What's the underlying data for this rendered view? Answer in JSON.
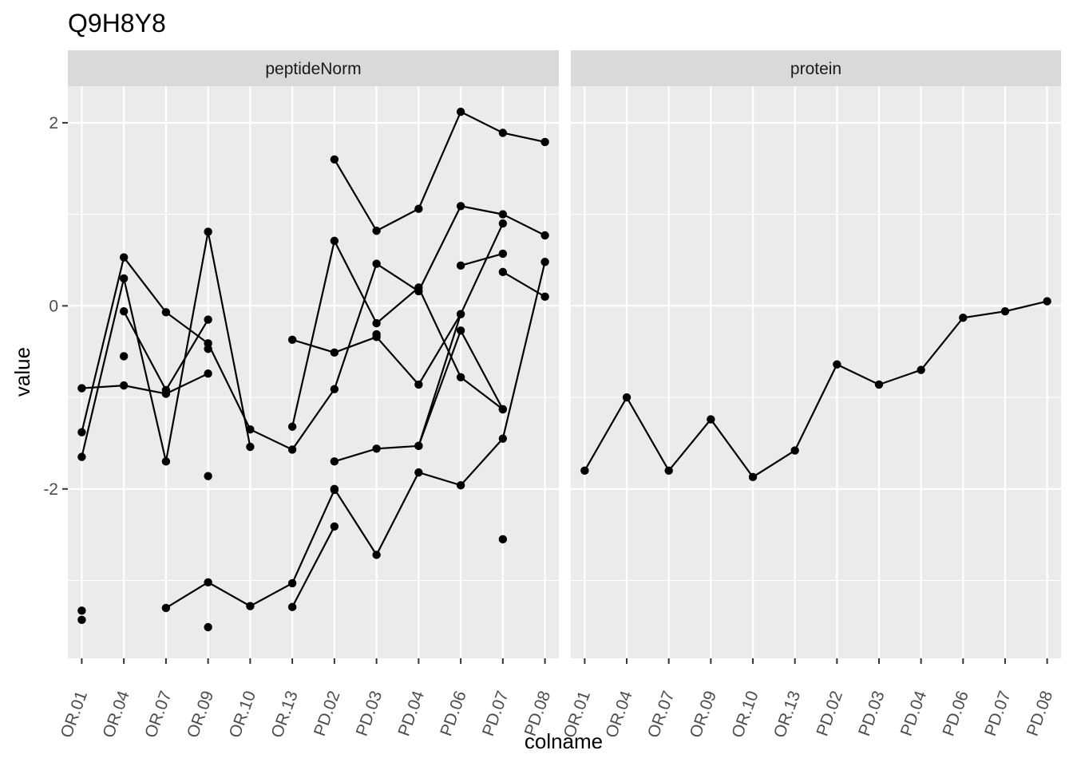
{
  "chart_data": {
    "type": "line",
    "title": "Q9H8Y8",
    "xlabel": "colname",
    "ylabel": "value",
    "ylim": [
      -3.85,
      2.4
    ],
    "y_ticks": [
      -2,
      0,
      2
    ],
    "y_tick_labels": [
      "-2",
      "0",
      "2"
    ],
    "grid": true,
    "categories": [
      "OR.01",
      "OR.04",
      "OR.07",
      "OR.09",
      "OR.10",
      "OR.13",
      "PD.02",
      "PD.03",
      "PD.04",
      "PD.06",
      "PD.07",
      "PD.08"
    ],
    "panels": [
      {
        "name": "peptideNorm",
        "series": [
          {
            "values": [
              null,
              null,
              null,
              null,
              null,
              null,
              1.6,
              0.82,
              1.06,
              2.12,
              1.89,
              1.79
            ]
          },
          {
            "values": [
              -1.38,
              0.53,
              -0.07,
              -0.41,
              -1.35,
              -1.57,
              -0.91,
              0.46,
              0.16,
              1.09,
              1.0,
              0.77
            ]
          },
          {
            "values": [
              null,
              null,
              null,
              null,
              null,
              -1.32,
              0.71,
              -0.19,
              0.2,
              -0.78,
              -1.13,
              null
            ]
          },
          {
            "values": [
              -1.65,
              0.3,
              -1.7,
              0.81,
              -1.54,
              null,
              null,
              null,
              null,
              null,
              null,
              null
            ]
          },
          {
            "values": [
              -0.9,
              -0.87,
              -0.96,
              -0.74,
              null,
              null,
              null,
              null,
              null,
              null,
              null,
              null
            ]
          },
          {
            "values": [
              null,
              -0.06,
              -0.92,
              -0.15,
              null,
              null,
              null,
              null,
              null,
              null,
              null,
              null
            ]
          },
          {
            "values": [
              null,
              null,
              null,
              null,
              null,
              -0.37,
              -0.51,
              -0.34,
              -0.86,
              -0.09,
              0.9,
              null
            ]
          },
          {
            "values": [
              null,
              null,
              null,
              null,
              null,
              null,
              null,
              -0.31,
              null,
              null,
              null,
              null
            ]
          },
          {
            "values": [
              null,
              null,
              null,
              null,
              null,
              null,
              null,
              null,
              null,
              0.44,
              0.57,
              null
            ]
          },
          {
            "values": [
              null,
              null,
              null,
              null,
              null,
              null,
              -1.7,
              -1.56,
              -1.53,
              -0.27,
              -1.13,
              null
            ]
          },
          {
            "values": [
              null,
              null,
              null,
              null,
              null,
              null,
              null,
              null,
              null,
              null,
              0.37,
              0.1
            ]
          },
          {
            "values": [
              null,
              null,
              null,
              null,
              null,
              null,
              null,
              null,
              -1.53,
              -0.09,
              null,
              null
            ]
          },
          {
            "values": [
              null,
              null,
              null,
              null,
              null,
              null,
              -2.0,
              -2.72,
              -1.82,
              -1.96,
              -1.45,
              0.48
            ]
          },
          {
            "values": [
              null,
              null,
              -3.3,
              -3.02,
              -3.28,
              -3.03,
              -2.01,
              null,
              null,
              null,
              null,
              null
            ]
          },
          {
            "values": [
              null,
              null,
              null,
              null,
              null,
              -3.29,
              -2.41,
              null,
              null,
              null,
              null,
              null
            ]
          }
        ],
        "isolated_points": [
          {
            "category": "OR.01",
            "value": -3.33
          },
          {
            "category": "OR.01",
            "value": -3.43
          },
          {
            "category": "OR.04",
            "value": -0.55
          },
          {
            "category": "OR.09",
            "value": -0.47
          },
          {
            "category": "OR.09",
            "value": -1.86
          },
          {
            "category": "OR.09",
            "value": -3.51
          },
          {
            "category": "PD.07",
            "value": -2.55
          }
        ]
      },
      {
        "name": "protein",
        "series": [
          {
            "values": [
              -1.8,
              -1.0,
              -1.8,
              -1.24,
              -1.87,
              -1.58,
              -0.64,
              -0.86,
              -0.7,
              -0.13,
              -0.06,
              0.05
            ]
          }
        ],
        "isolated_points": []
      }
    ]
  }
}
